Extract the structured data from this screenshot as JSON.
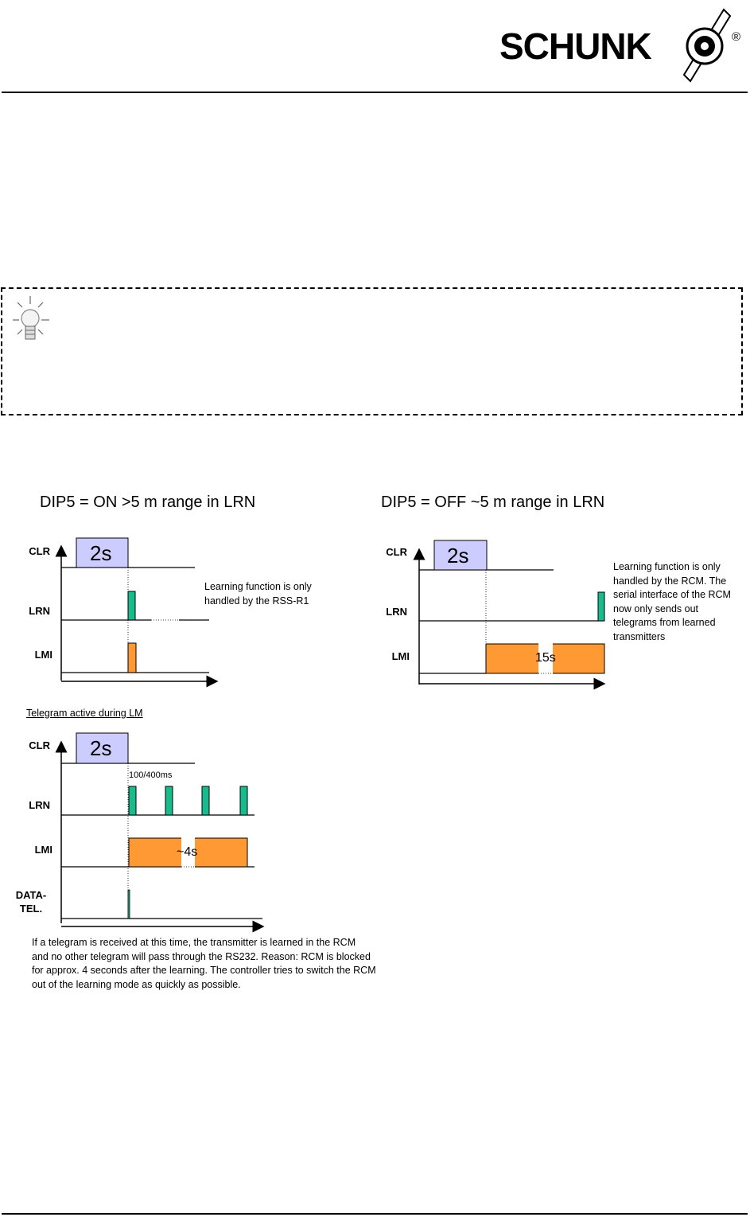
{
  "header": {
    "logo_text": "SCHUNK",
    "registered_mark": "®"
  },
  "diagrams": {
    "left_title": "DIP5 = ON >5 m range in LRN",
    "right_title": "DIP5 = OFF ~5 m range in LRN",
    "pulse_label": "2s",
    "signal_clr": "CLR",
    "signal_lrn": "LRN",
    "signal_lmi": "LMI",
    "signal_data_line1": "DATA-",
    "signal_data_line2": "TEL.",
    "left_note_line1": "Learning function is only",
    "left_note_line2": "handled by the RSS-R1",
    "right_note_lines": [
      "Learning function is only",
      "handled by the RCM. The",
      "serial interface of the RCM",
      "now only sends out",
      "telegrams from learned",
      "transmitters"
    ],
    "right_duration": "15s",
    "telegram_heading": "Telegram active during LM",
    "interval_label": "100/400ms",
    "telegram_duration": "~4s",
    "bottom_note_lines": [
      "If a telegram is received at this time, the transmitter is learned in the RCM",
      "and no other telegram will pass through the RS232. Reason: RCM is blocked",
      "for approx. 4 seconds after the learning. The controller tries to switch the RCM",
      "out of the learning mode as quickly as possible."
    ]
  },
  "colors": {
    "pulse_fill": "#ccccff",
    "lrn_fill": "#19bb8c",
    "lmi_fill": "#ff9933"
  }
}
